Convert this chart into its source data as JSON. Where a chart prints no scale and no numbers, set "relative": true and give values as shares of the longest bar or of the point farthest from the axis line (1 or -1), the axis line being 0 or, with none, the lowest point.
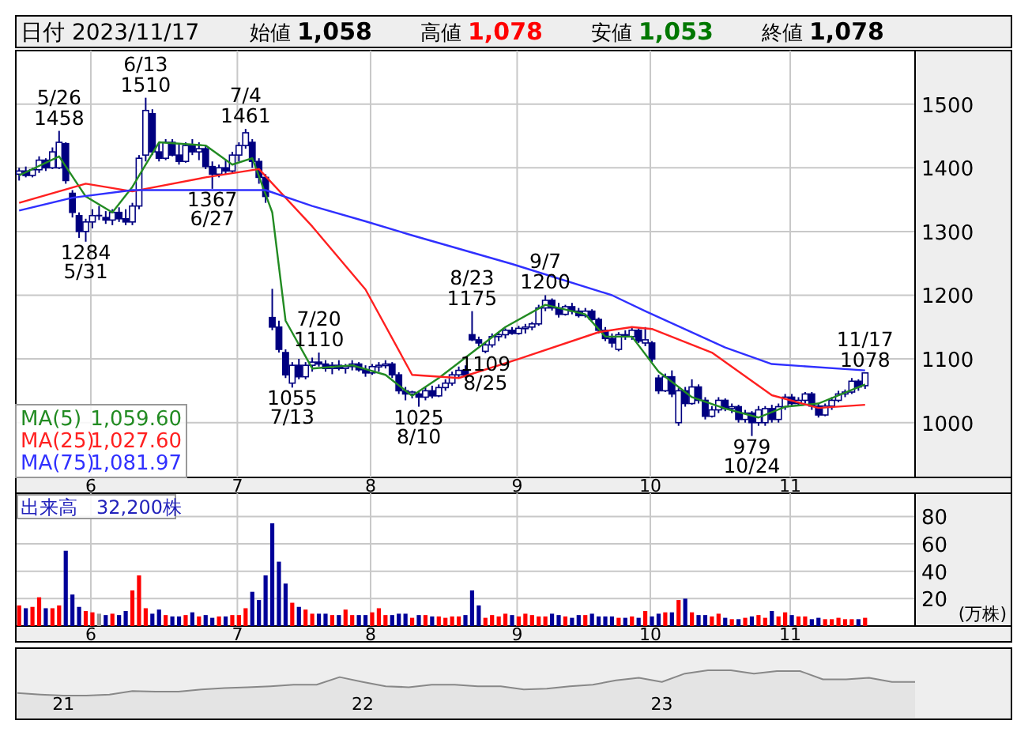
{
  "chart_data": [
    {
      "type": "other",
      "title": "日付 2023/11/17",
      "annotations": [
        "始値",
        "1,058",
        "高値",
        "1,078",
        "安値",
        "1,053",
        "終値",
        "1,078"
      ],
      "colors": [
        "#000000",
        "#000000",
        "#000000",
        "#ff0000",
        "#000000",
        "#007700",
        "#000000",
        "#000000"
      ]
    },
    {
      "type": "candlestick",
      "ylim": [
        914,
        1584
      ],
      "yticks": [
        1000,
        1100,
        1200,
        1300,
        1400,
        1500
      ],
      "grid": true,
      "legend": "bottom left",
      "categories": [
        null,
        null,
        null,
        null,
        null,
        null,
        null,
        null,
        null,
        null,
        null,
        "6",
        null,
        null,
        null,
        null,
        null,
        null,
        null,
        null,
        null,
        null,
        null,
        null,
        null,
        null,
        null,
        null,
        null,
        null,
        null,
        null,
        null,
        "7",
        null,
        null,
        null,
        null,
        null,
        null,
        null,
        null,
        null,
        null,
        null,
        null,
        null,
        null,
        null,
        null,
        null,
        null,
        null,
        "8",
        null,
        null,
        null,
        null,
        null,
        null,
        null,
        null,
        null,
        null,
        null,
        null,
        null,
        null,
        null,
        null,
        null,
        null,
        null,
        null,
        null,
        "9",
        null,
        null,
        null,
        null,
        null,
        null,
        null,
        null,
        null,
        null,
        null,
        null,
        null,
        null,
        null,
        null,
        null,
        null,
        null,
        "10",
        null,
        null,
        null,
        null,
        null,
        null,
        null,
        null,
        null,
        null,
        null,
        null,
        null,
        null,
        null,
        null,
        null,
        null,
        null,
        null,
        "11",
        null,
        null,
        null,
        null,
        null,
        null,
        null,
        null,
        null,
        null,
        null
      ],
      "ohlc": [
        [
          1390,
          1400,
          1380,
          1395
        ],
        [
          1395,
          1402,
          1385,
          1388
        ],
        [
          1388,
          1400,
          1385,
          1397
        ],
        [
          1397,
          1418,
          1392,
          1412
        ],
        [
          1412,
          1415,
          1395,
          1400
        ],
        [
          1400,
          1432,
          1398,
          1425
        ],
        [
          1400,
          1458,
          1398,
          1440
        ],
        [
          1438,
          1440,
          1375,
          1380
        ],
        [
          1360,
          1365,
          1322,
          1330
        ],
        [
          1325,
          1330,
          1290,
          1300
        ],
        [
          1300,
          1320,
          1284,
          1315
        ],
        [
          1315,
          1335,
          1305,
          1325
        ],
        [
          1325,
          1340,
          1318,
          1325
        ],
        [
          1322,
          1332,
          1312,
          1318
        ],
        [
          1318,
          1335,
          1310,
          1330
        ],
        [
          1330,
          1338,
          1315,
          1320
        ],
        [
          1320,
          1335,
          1310,
          1315
        ],
        [
          1315,
          1345,
          1310,
          1340
        ],
        [
          1340,
          1420,
          1335,
          1415
        ],
        [
          1420,
          1510,
          1410,
          1490
        ],
        [
          1485,
          1492,
          1420,
          1425
        ],
        [
          1425,
          1440,
          1410,
          1415
        ],
        [
          1415,
          1445,
          1412,
          1440
        ],
        [
          1440,
          1445,
          1418,
          1420
        ],
        [
          1420,
          1438,
          1405,
          1410
        ],
        [
          1410,
          1440,
          1408,
          1435
        ],
        [
          1435,
          1445,
          1420,
          1425
        ],
        [
          1425,
          1440,
          1412,
          1430
        ],
        [
          1430,
          1435,
          1398,
          1402
        ],
        [
          1402,
          1410,
          1367,
          1390
        ],
        [
          1390,
          1405,
          1385,
          1400
        ],
        [
          1400,
          1412,
          1390,
          1395
        ],
        [
          1395,
          1425,
          1392,
          1420
        ],
        [
          1420,
          1440,
          1410,
          1435
        ],
        [
          1435,
          1461,
          1430,
          1455
        ],
        [
          1440,
          1445,
          1400,
          1410
        ],
        [
          1410,
          1415,
          1375,
          1385
        ],
        [
          1385,
          1390,
          1345,
          1355
        ],
        [
          1165,
          1210,
          1145,
          1150
        ],
        [
          1150,
          1160,
          1110,
          1115
        ],
        [
          1110,
          1115,
          1070,
          1075
        ],
        [
          1062,
          1095,
          1055,
          1090
        ],
        [
          1090,
          1100,
          1068,
          1072
        ],
        [
          1072,
          1095,
          1068,
          1090
        ],
        [
          1090,
          1102,
          1080,
          1095
        ],
        [
          1095,
          1110,
          1088,
          1092
        ],
        [
          1092,
          1098,
          1080,
          1085
        ],
        [
          1085,
          1095,
          1076,
          1090
        ],
        [
          1090,
          1098,
          1082,
          1085
        ],
        [
          1085,
          1092,
          1077,
          1088
        ],
        [
          1088,
          1098,
          1082,
          1092
        ],
        [
          1092,
          1095,
          1080,
          1083
        ],
        [
          1083,
          1090,
          1072,
          1078
        ],
        [
          1078,
          1092,
          1075,
          1088
        ],
        [
          1088,
          1095,
          1080,
          1090
        ],
        [
          1090,
          1098,
          1085,
          1092
        ],
        [
          1092,
          1095,
          1070,
          1075
        ],
        [
          1075,
          1079,
          1045,
          1050
        ],
        [
          1050,
          1056,
          1035,
          1045
        ],
        [
          1045,
          1050,
          1038,
          1048
        ],
        [
          1045,
          1050,
          1025,
          1040
        ],
        [
          1040,
          1056,
          1035,
          1050
        ],
        [
          1050,
          1058,
          1038,
          1042
        ],
        [
          1042,
          1060,
          1040,
          1055
        ],
        [
          1055,
          1068,
          1050,
          1062
        ],
        [
          1062,
          1080,
          1058,
          1075
        ],
        [
          1075,
          1088,
          1070,
          1082
        ],
        [
          1082,
          1090,
          1070,
          1075
        ],
        [
          1138,
          1175,
          1128,
          1130
        ],
        [
          1130,
          1135,
          1120,
          1125
        ],
        [
          1112,
          1125,
          1109,
          1122
        ],
        [
          1122,
          1140,
          1118,
          1135
        ],
        [
          1135,
          1142,
          1128,
          1138
        ],
        [
          1138,
          1148,
          1132,
          1145
        ],
        [
          1145,
          1150,
          1138,
          1140
        ],
        [
          1140,
          1152,
          1138,
          1148
        ],
        [
          1148,
          1155,
          1140,
          1150
        ],
        [
          1150,
          1158,
          1145,
          1155
        ],
        [
          1155,
          1185,
          1152,
          1180
        ],
        [
          1180,
          1200,
          1175,
          1192
        ],
        [
          1192,
          1195,
          1176,
          1180
        ],
        [
          1180,
          1188,
          1165,
          1170
        ],
        [
          1170,
          1185,
          1168,
          1182
        ],
        [
          1182,
          1188,
          1170,
          1175
        ],
        [
          1175,
          1180,
          1165,
          1168
        ],
        [
          1168,
          1180,
          1165,
          1175
        ],
        [
          1175,
          1178,
          1160,
          1162
        ],
        [
          1162,
          1165,
          1140,
          1145
        ],
        [
          1145,
          1150,
          1128,
          1132
        ],
        [
          1132,
          1140,
          1118,
          1125
        ],
        [
          1115,
          1142,
          1112,
          1138
        ],
        [
          1138,
          1145,
          1130,
          1135
        ],
        [
          1135,
          1150,
          1130,
          1145
        ],
        [
          1145,
          1148,
          1125,
          1128
        ],
        [
          1125,
          1150,
          1120,
          1130
        ],
        [
          1125,
          1128,
          1095,
          1100
        ],
        [
          1070,
          1075,
          1045,
          1050
        ],
        [
          1050,
          1077,
          1048,
          1072
        ],
        [
          1072,
          1082,
          1040,
          1045
        ],
        [
          1000,
          1054,
          995,
          1050
        ],
        [
          1050,
          1056,
          1025,
          1030
        ],
        [
          1030,
          1068,
          1028,
          1056
        ],
        [
          1056,
          1060,
          1030,
          1035
        ],
        [
          1035,
          1040,
          1005,
          1010
        ],
        [
          1010,
          1026,
          1008,
          1020
        ],
        [
          1020,
          1040,
          1015,
          1035
        ],
        [
          1035,
          1038,
          1018,
          1022
        ],
        [
          1022,
          1030,
          1015,
          1025
        ],
        [
          1025,
          1028,
          1000,
          1005
        ],
        [
          1005,
          1020,
          1000,
          1015
        ],
        [
          1015,
          1018,
          979,
          1000
        ],
        [
          1000,
          1026,
          995,
          1020
        ],
        [
          1000,
          1026,
          995,
          1022
        ],
        [
          1022,
          1028,
          1000,
          1005
        ],
        [
          1005,
          1030,
          1000,
          1025
        ],
        [
          1025,
          1045,
          1020,
          1040
        ],
        [
          1040,
          1045,
          1026,
          1030
        ],
        [
          1030,
          1040,
          1026,
          1035
        ],
        [
          1035,
          1048,
          1030,
          1045
        ],
        [
          1045,
          1048,
          1020,
          1026
        ],
        [
          1026,
          1030,
          1008,
          1012
        ],
        [
          1012,
          1030,
          1010,
          1026
        ],
        [
          1026,
          1040,
          1020,
          1035
        ],
        [
          1035,
          1050,
          1032,
          1045
        ],
        [
          1045,
          1052,
          1040,
          1048
        ],
        [
          1048,
          1070,
          1045,
          1065
        ],
        [
          1065,
          1068,
          1050,
          1056
        ],
        [
          1058,
          1078,
          1053,
          1078
        ]
      ],
      "series": [
        {
          "name": "MA(5)",
          "type": "line",
          "color": "#228b22",
          "values": [
            1388,
            null,
            null,
            null,
            null,
            null,
            1418,
            null,
            null,
            null,
            1355,
            null,
            null,
            null,
            1330,
            null,
            null,
            1370,
            null,
            null,
            null,
            1440,
            null,
            null,
            null,
            null,
            null,
            null,
            1435,
            null,
            null,
            null,
            1405,
            null,
            null,
            1415,
            null,
            null,
            1330,
            null,
            1160,
            null,
            null,
            null,
            1085,
            null,
            null,
            null,
            null,
            null,
            1090,
            null,
            null,
            null,
            null,
            1075,
            null,
            null,
            null,
            1042,
            null,
            null,
            null,
            1070,
            null,
            null,
            null,
            null,
            1110,
            null,
            null,
            null,
            null,
            1150,
            null,
            null,
            null,
            null,
            null,
            1185,
            null,
            null,
            null,
            null,
            null,
            1170,
            null,
            null,
            1135,
            null,
            null,
            null,
            1135,
            null,
            null,
            null,
            1080,
            null,
            null,
            null,
            null,
            1040,
            null,
            null,
            null,
            null,
            1022,
            null,
            null,
            null,
            null,
            1008,
            null,
            null,
            null,
            1025,
            null,
            null,
            null,
            null,
            1030,
            null,
            null,
            null,
            null,
            null,
            null,
            1060
          ]
        },
        {
          "name": "MA(25)",
          "type": "line",
          "color": "#ff2020",
          "values": [
            1345,
            null,
            null,
            null,
            null,
            null,
            null,
            null,
            null,
            null,
            1375,
            null,
            null,
            null,
            null,
            null,
            null,
            1363,
            null,
            null,
            null,
            null,
            null,
            null,
            null,
            null,
            null,
            null,
            1385,
            null,
            null,
            null,
            null,
            null,
            null,
            null,
            1398,
            null,
            null,
            null,
            null,
            null,
            null,
            null,
            1308,
            null,
            null,
            null,
            null,
            null,
            null,
            null,
            1209,
            null,
            null,
            null,
            null,
            null,
            null,
            1075,
            null,
            null,
            null,
            null,
            null,
            null,
            1070,
            null,
            null,
            null,
            null,
            null,
            null,
            null,
            null,
            1100,
            null,
            null,
            null,
            null,
            null,
            null,
            null,
            null,
            null,
            null,
            null,
            1142,
            null,
            null,
            null,
            null,
            1150,
            null,
            null,
            1147,
            null,
            null,
            null,
            null,
            null,
            null,
            null,
            null,
            1110,
            null,
            null,
            null,
            null,
            null,
            null,
            null,
            null,
            1043,
            null,
            null,
            null,
            null,
            null,
            null,
            1023,
            null,
            null,
            null,
            null,
            null,
            null,
            1028
          ]
        },
        {
          "name": "MA(75)",
          "type": "line",
          "color": "#3030ff",
          "values": [
            1333,
            null,
            null,
            null,
            null,
            null,
            null,
            null,
            1353,
            null,
            null,
            null,
            null,
            null,
            null,
            null,
            null,
            1365,
            null,
            null,
            null,
            null,
            null,
            null,
            null,
            null,
            null,
            null,
            null,
            null,
            null,
            null,
            null,
            null,
            null,
            null,
            null,
            1365,
            null,
            null,
            null,
            null,
            null,
            null,
            1340,
            null,
            null,
            null,
            null,
            null,
            null,
            null,
            1316,
            null,
            null,
            null,
            null,
            null,
            null,
            1294,
            null,
            null,
            null,
            null,
            null,
            null,
            null,
            null,
            null,
            null,
            null,
            null,
            null,
            null,
            1249,
            null,
            null,
            null,
            null,
            null,
            null,
            null,
            null,
            null,
            null,
            null,
            null,
            null,
            null,
            1200,
            null,
            null,
            null,
            null,
            1175,
            null,
            null,
            null,
            null,
            null,
            null,
            null,
            null,
            null,
            null,
            null,
            1118,
            null,
            null,
            null,
            null,
            null,
            null,
            1092,
            null,
            null,
            null,
            null,
            null,
            null,
            null,
            null,
            null,
            null,
            null,
            null,
            null,
            1082
          ]
        }
      ],
      "annotations": [
        {
          "text": "5/26\n1458",
          "y": 1458
        },
        {
          "text": "1284\n5/31",
          "y": 1284
        },
        {
          "text": "6/13\n1510",
          "y": 1510
        },
        {
          "text": "1367\n6/27",
          "y": 1367
        },
        {
          "text": "7/4\n1461",
          "y": 1461
        },
        {
          "text": "7/20\n1110",
          "y": 1110
        },
        {
          "text": "1055\n7/13",
          "y": 1055
        },
        {
          "text": "1025\n8/10",
          "y": 1025
        },
        {
          "text": "8/23\n1175",
          "y": 1175
        },
        {
          "text": "1109\n8/25",
          "y": 1109
        },
        {
          "text": "9/7\n1200",
          "y": 1200
        },
        {
          "text": "979\n10/24",
          "y": 979
        },
        {
          "text": "11/17\n1078",
          "y": 1078
        },
        "1,059.60",
        "1,027.60",
        "1,081.97"
      ]
    },
    {
      "type": "bar",
      "title": "出来高　32,200株",
      "ylabel": "(万株)",
      "ylim": [
        0,
        97
      ],
      "yticks": [
        20,
        40,
        60,
        80
      ],
      "grid": true,
      "categories": [
        null,
        null,
        null,
        null,
        null,
        null,
        null,
        null,
        null,
        null,
        null,
        "6",
        null,
        null,
        null,
        null,
        null,
        null,
        null,
        null,
        null,
        null,
        null,
        null,
        null,
        null,
        null,
        null,
        null,
        null,
        null,
        null,
        null,
        "7",
        null,
        null,
        null,
        null,
        null,
        null,
        null,
        null,
        null,
        null,
        null,
        null,
        null,
        null,
        null,
        null,
        null,
        null,
        null,
        "8",
        null,
        null,
        null,
        null,
        null,
        null,
        null,
        null,
        null,
        null,
        null,
        null,
        null,
        null,
        null,
        null,
        null,
        null,
        null,
        null,
        null,
        "9",
        null,
        null,
        null,
        null,
        null,
        null,
        null,
        null,
        null,
        null,
        null,
        null,
        null,
        null,
        null,
        null,
        null,
        null,
        null,
        "10",
        null,
        null,
        null,
        null,
        null,
        null,
        null,
        null,
        null,
        null,
        null,
        null,
        null,
        null,
        null,
        null,
        null,
        null,
        null,
        null,
        "11",
        null,
        null,
        null,
        null,
        null,
        null,
        null,
        null,
        null,
        null,
        null
      ],
      "values": [
        15,
        13,
        14,
        21,
        13,
        13,
        15,
        55,
        23,
        14,
        11,
        10,
        9,
        8,
        9,
        8,
        11,
        26,
        37,
        13,
        9,
        12,
        8,
        7,
        7,
        8,
        10,
        7,
        8,
        6,
        7,
        7,
        8,
        8,
        13,
        25,
        19,
        37,
        75,
        47,
        31,
        17,
        14,
        12,
        9,
        9,
        9,
        8,
        8,
        12,
        8,
        8,
        8,
        10,
        13,
        8,
        8,
        9,
        9,
        6,
        8,
        8,
        7,
        7,
        6,
        7,
        7,
        8,
        26,
        15,
        6,
        8,
        7,
        9,
        8,
        7,
        9,
        8,
        7,
        7,
        9,
        8,
        7,
        6,
        8,
        8,
        9,
        7,
        7,
        7,
        6,
        6,
        7,
        6,
        11,
        7,
        9,
        10,
        10,
        19,
        20,
        10,
        8,
        8,
        7,
        9,
        6,
        5,
        5,
        6,
        7,
        8,
        6,
        11,
        7,
        10,
        8,
        7,
        7,
        5,
        6,
        5,
        5,
        6,
        5,
        5,
        5,
        6
      ],
      "colors": [
        "#ff0000",
        "#000099",
        "#ff0000",
        "#ff0000",
        "#000099",
        "#ff0000",
        "#ff0000",
        "#000099",
        "#000099",
        "#000099",
        "#ff0000",
        "#ff0000",
        "#999999",
        "#000099",
        "#ff0000",
        "#000099",
        "#000099",
        "#ff0000",
        "#ff0000",
        "#ff0000",
        "#000099",
        "#000099",
        "#ff0000",
        "#000099",
        "#000099",
        "#ff0000",
        "#000099",
        "#ff0000",
        "#000099",
        "#000099",
        "#ff0000",
        "#000099",
        "#ff0000",
        "#ff0000",
        "#ff0000",
        "#000099",
        "#000099",
        "#000099",
        "#000099",
        "#000099",
        "#000099",
        "#ff0000",
        "#000099",
        "#ff0000",
        "#ff0000",
        "#000099",
        "#000099",
        "#ff0000",
        "#000099",
        "#ff0000",
        "#ff0000",
        "#000099",
        "#000099",
        "#ff0000",
        "#ff0000",
        "#ff0000",
        "#000099",
        "#000099",
        "#000099",
        "#ff0000",
        "#000099",
        "#ff0000",
        "#000099",
        "#ff0000",
        "#ff0000",
        "#ff0000",
        "#ff0000",
        "#000099",
        "#000099",
        "#000099",
        "#ff0000",
        "#ff0000",
        "#ff0000",
        "#ff0000",
        "#000099",
        "#ff0000",
        "#ff0000",
        "#ff0000",
        "#ff0000",
        "#ff0000",
        "#000099",
        "#000099",
        "#ff0000",
        "#000099",
        "#000099",
        "#ff0000",
        "#000099",
        "#000099",
        "#000099",
        "#000099",
        "#ff0000",
        "#000099",
        "#ff0000",
        "#000099",
        "#ff0000",
        "#000099",
        "#000099",
        "#ff0000",
        "#000099",
        "#ff0000",
        "#000099",
        "#ff0000",
        "#000099",
        "#000099",
        "#ff0000",
        "#ff0000",
        "#000099",
        "#ff0000",
        "#000099",
        "#ff0000",
        "#000099",
        "#ff0000",
        "#ff0000",
        "#000099",
        "#ff0000",
        "#ff0000",
        "#000099",
        "#ff0000",
        "#ff0000",
        "#000099",
        "#000099",
        "#ff0000",
        "#ff0000",
        "#ff0000",
        "#ff0000",
        "#ff0000",
        "#000099",
        "#ff0000"
      ]
    },
    {
      "type": "area",
      "relative": true,
      "color": "#888888",
      "categories": [
        null,
        null,
        "21",
        null,
        null,
        null,
        null,
        null,
        null,
        null,
        null,
        null,
        null,
        null,
        null,
        "22",
        null,
        null,
        null,
        null,
        null,
        null,
        null,
        null,
        null,
        null,
        null,
        null,
        "23",
        null,
        null,
        null,
        null,
        null,
        null,
        null,
        null,
        null,
        null,
        null
      ],
      "values": [
        0.1,
        0.04,
        0,
        0,
        0.04,
        0.18,
        0.16,
        0.16,
        0.24,
        0.3,
        0.33,
        0.37,
        0.43,
        0.43,
        0.73,
        0.54,
        0.37,
        0.33,
        0.43,
        0.43,
        0.37,
        0.37,
        0.24,
        0.27,
        0.37,
        0.43,
        0.6,
        0.7,
        0.54,
        0.87,
        1,
        1,
        0.87,
        0.97,
        0.97,
        0.64,
        0.64,
        0.7,
        0.54,
        0.54
      ]
    }
  ]
}
